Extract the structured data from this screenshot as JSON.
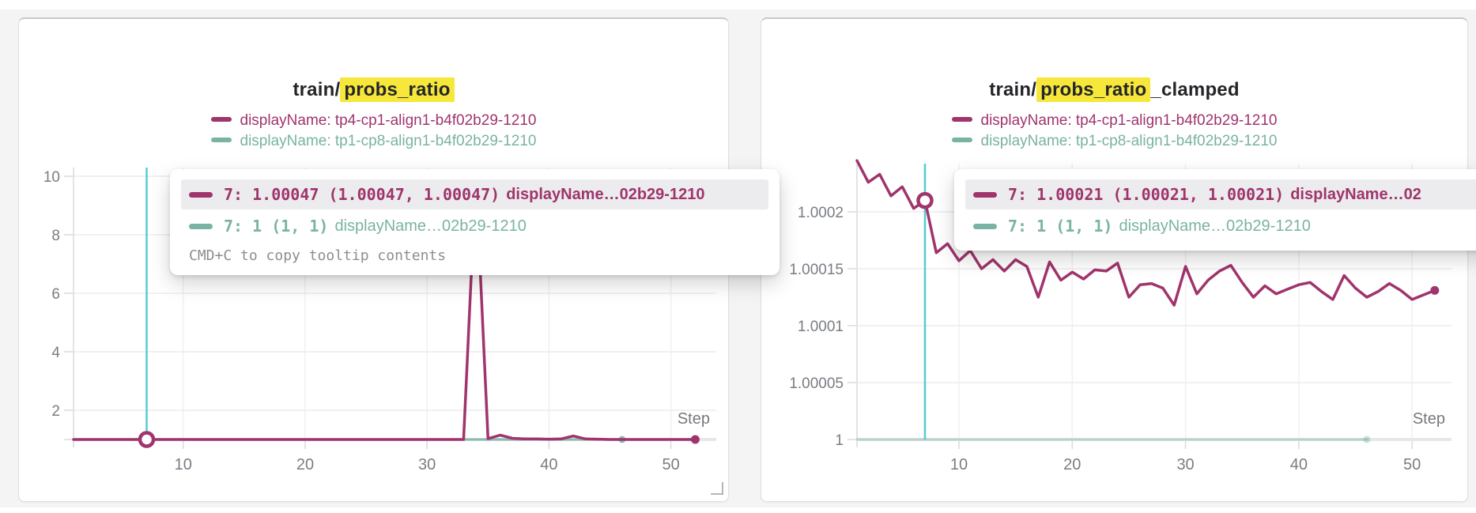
{
  "page": {
    "background": "#f4f4f5",
    "highlight_yellow": "#f7e73b"
  },
  "colors": {
    "magenta": "#a0346c",
    "teal": "#79b3a3",
    "crosshair": "#55cbd5"
  },
  "panels": [
    {
      "title": {
        "prefix": "train/",
        "highlight": "probs_ratio",
        "suffix": ""
      },
      "legend": [
        {
          "label": "displayName: tp4-cp1-align1-b4f02b29-1210",
          "color": "#a0346c"
        },
        {
          "label": "displayName: tp1-cp8-align1-b4f02b29-1210",
          "color": "#79b3a3"
        }
      ],
      "tooltip": {
        "rows": [
          {
            "value_text": "7: 1.00047 (1.00047, 1.00047)",
            "name_text": "displayName…02b29-1210",
            "color": "#a0346c"
          },
          {
            "value_text": "7: 1 (1, 1)",
            "name_text": "displayName…02b29-1210",
            "color": "#79b3a3"
          }
        ],
        "hint": "CMD+C to copy tooltip contents"
      },
      "chart_data": {
        "type": "line",
        "title": "train/probs_ratio",
        "xlabel": "Step",
        "x_range": [
          1,
          52
        ],
        "xticks": [
          10,
          20,
          30,
          40,
          50
        ],
        "yticks": [
          {
            "v": 1,
            "label": ""
          },
          {
            "v": 2,
            "label": "2"
          },
          {
            "v": 4,
            "label": "4"
          },
          {
            "v": 6,
            "label": "6"
          },
          {
            "v": 8,
            "label": "8"
          },
          {
            "v": 10,
            "label": "10"
          }
        ],
        "ylim": [
          1,
          10
        ],
        "crosshair": {
          "step": 7,
          "color": "#55cbd5"
        },
        "marker": {
          "step": 7,
          "value": 1.00047,
          "color": "#a0346c"
        },
        "series": [
          {
            "name": "tp1-cp8-align1-b4f02b29-1210",
            "color": "#79b3a3",
            "width": 3,
            "opacity": 0.85,
            "end_dot": true,
            "end_dot_r": 4.5,
            "values": [
              1,
              1,
              1,
              1,
              1,
              1,
              1,
              1,
              1,
              1,
              1,
              1,
              1,
              1,
              1,
              1,
              1,
              1,
              1,
              1,
              1,
              1,
              1,
              1,
              1,
              1,
              1,
              1,
              1,
              1,
              1,
              1,
              1,
              1,
              1,
              1,
              1,
              1,
              1,
              1,
              1,
              1,
              1,
              1,
              1,
              1
            ]
          },
          {
            "name": "tp4-cp1-align1-b4f02b29-1210",
            "color": "#a0346c",
            "width": 3.5,
            "opacity": 1,
            "end_dot": true,
            "end_dot_r": 5.5,
            "values": [
              1,
              1,
              1,
              1,
              1,
              1,
              1,
              1,
              1,
              1,
              1,
              1,
              1,
              1,
              1,
              1,
              1,
              1,
              1,
              1,
              1,
              1,
              1,
              1,
              1,
              1,
              1,
              1,
              1,
              1,
              1,
              1,
              1,
              10,
              1.03,
              1.15,
              1.04,
              1.02,
              1.02,
              1.01,
              1.02,
              1.12,
              1.02,
              1.01,
              1,
              1,
              1,
              1,
              1,
              1,
              1,
              1
            ]
          }
        ]
      }
    },
    {
      "title": {
        "prefix": "train/",
        "highlight": "probs_ratio",
        "suffix": "_clamped"
      },
      "legend": [
        {
          "label": "displayName: tp4-cp1-align1-b4f02b29-1210",
          "color": "#a0346c"
        },
        {
          "label": "displayName: tp1-cp8-align1-b4f02b29-1210",
          "color": "#79b3a3"
        }
      ],
      "tooltip": {
        "rows": [
          {
            "value_text": "7: 1.00021 (1.00021, 1.00021)",
            "name_text": "displayName…02",
            "color": "#a0346c"
          },
          {
            "value_text": "7: 1 (1, 1)",
            "name_text": "displayName…02b29-1210",
            "color": "#79b3a3"
          }
        ],
        "hint": ""
      },
      "chart_data": {
        "type": "line",
        "title": "train/probs_ratio_clamped",
        "xlabel": "Step",
        "x_range": [
          1,
          52
        ],
        "xticks": [
          10,
          20,
          30,
          40,
          50
        ],
        "yticks": [
          {
            "v": 1,
            "label": "1"
          },
          {
            "v": 1.00005,
            "label": "1.00005"
          },
          {
            "v": 1.0001,
            "label": "1.0001"
          },
          {
            "v": 1.00015,
            "label": "1.00015"
          },
          {
            "v": 1.0002,
            "label": "1.0002"
          }
        ],
        "ylim": [
          1,
          1.00025
        ],
        "crosshair": {
          "step": 7,
          "color": "#55cbd5"
        },
        "marker": {
          "step": 7,
          "value": 1.00021,
          "color": "#a0346c"
        },
        "series": [
          {
            "name": "tp1-cp8-align1-b4f02b29-1210",
            "color": "#79b3a3",
            "width": 3,
            "opacity": 0.4,
            "end_dot": true,
            "end_dot_r": 4.5,
            "values": [
              1,
              1,
              1,
              1,
              1,
              1,
              1,
              1,
              1,
              1,
              1,
              1,
              1,
              1,
              1,
              1,
              1,
              1,
              1,
              1,
              1,
              1,
              1,
              1,
              1,
              1,
              1,
              1,
              1,
              1,
              1,
              1,
              1,
              1,
              1,
              1,
              1,
              1,
              1,
              1,
              1,
              1,
              1,
              1,
              1,
              1
            ]
          },
          {
            "name": "tp4-cp1-align1-b4f02b29-1210",
            "color": "#a0346c",
            "width": 3.5,
            "opacity": 1,
            "end_dot": true,
            "end_dot_r": 5.5,
            "values": [
              1.000245,
              1.000226,
              1.000233,
              1.000214,
              1.000222,
              1.000203,
              1.00021,
              1.000164,
              1.000172,
              1.000157,
              1.000166,
              1.00015,
              1.000158,
              1.000148,
              1.000158,
              1.000152,
              1.000125,
              1.000156,
              1.00014,
              1.000147,
              1.000141,
              1.000149,
              1.000148,
              1.000155,
              1.000125,
              1.000136,
              1.000137,
              1.000133,
              1.000118,
              1.000152,
              1.000128,
              1.00014,
              1.000148,
              1.000153,
              1.000138,
              1.000125,
              1.000135,
              1.000128,
              1.000132,
              1.000136,
              1.000138,
              1.00013,
              1.000123,
              1.000144,
              1.000133,
              1.000125,
              1.00013,
              1.000137,
              1.000131,
              1.000123,
              1.000127,
              1.000131
            ]
          }
        ]
      }
    }
  ]
}
